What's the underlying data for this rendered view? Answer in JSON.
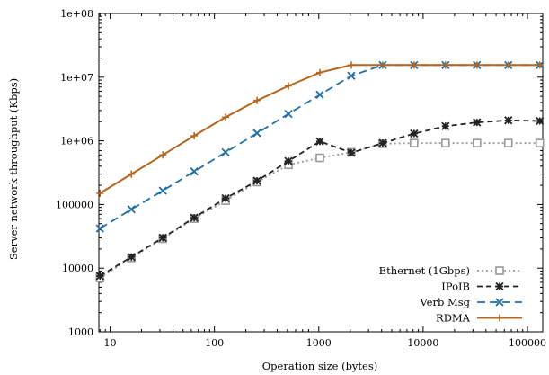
{
  "chart_data": {
    "type": "line",
    "title": "",
    "xlabel": "Operation size (bytes)",
    "ylabel": "Server network throughput (Kbps)",
    "x_scale": "log",
    "y_scale": "log",
    "xlim": [
      7.8,
      140000
    ],
    "ylim": [
      1000,
      100000000
    ],
    "grid": false,
    "legend_position": "bottom-right",
    "x_ticks": [
      {
        "value": 10,
        "label": "10"
      },
      {
        "value": 100,
        "label": "100"
      },
      {
        "value": 1000,
        "label": "1000"
      },
      {
        "value": 10000,
        "label": "10000"
      },
      {
        "value": 100000,
        "label": "100000"
      }
    ],
    "y_ticks": [
      {
        "value": 1000,
        "label": "1000"
      },
      {
        "value": 10000,
        "label": "10000"
      },
      {
        "value": 100000,
        "label": "100000"
      },
      {
        "value": 1000000,
        "label": "1e+06"
      },
      {
        "value": 10000000,
        "label": "1e+07"
      },
      {
        "value": 100000000,
        "label": "1e+08"
      }
    ],
    "x": [
      8,
      16,
      32,
      64,
      128,
      256,
      512,
      1024,
      2048,
      4096,
      8192,
      16384,
      32768,
      65536,
      131072
    ],
    "series": [
      {
        "name": "Ethernet (1Gbps)",
        "color": "#9a9a9a",
        "marker": "square",
        "dash": "dotted",
        "values": [
          7000,
          14500,
          29000,
          60000,
          115000,
          225000,
          420000,
          540000,
          660000,
          900000,
          920000,
          920000,
          920000,
          920000,
          920000
        ]
      },
      {
        "name": "IPoIB",
        "color": "#222222",
        "marker": "star",
        "dash": "dashed",
        "values": [
          7500,
          15000,
          30000,
          62000,
          125000,
          235000,
          480000,
          980000,
          650000,
          920000,
          1300000,
          1700000,
          1950000,
          2100000,
          2050000
        ]
      },
      {
        "name": "Verb Msg",
        "color": "#1f6fa8",
        "marker": "x",
        "dash": "longdash",
        "values": [
          42000,
          84000,
          165000,
          330000,
          660000,
          1320000,
          2650000,
          5300000,
          10500000,
          15500000,
          15500000,
          15500000,
          15500000,
          15500000,
          15500000
        ]
      },
      {
        "name": "RDMA",
        "color": "#b5651d",
        "marker": "plus",
        "dash": "solid",
        "values": [
          150000,
          300000,
          600000,
          1200000,
          2350000,
          4300000,
          7300000,
          11800000,
          15500000,
          15500000,
          15500000,
          15500000,
          15500000,
          15500000,
          15500000
        ]
      }
    ]
  }
}
